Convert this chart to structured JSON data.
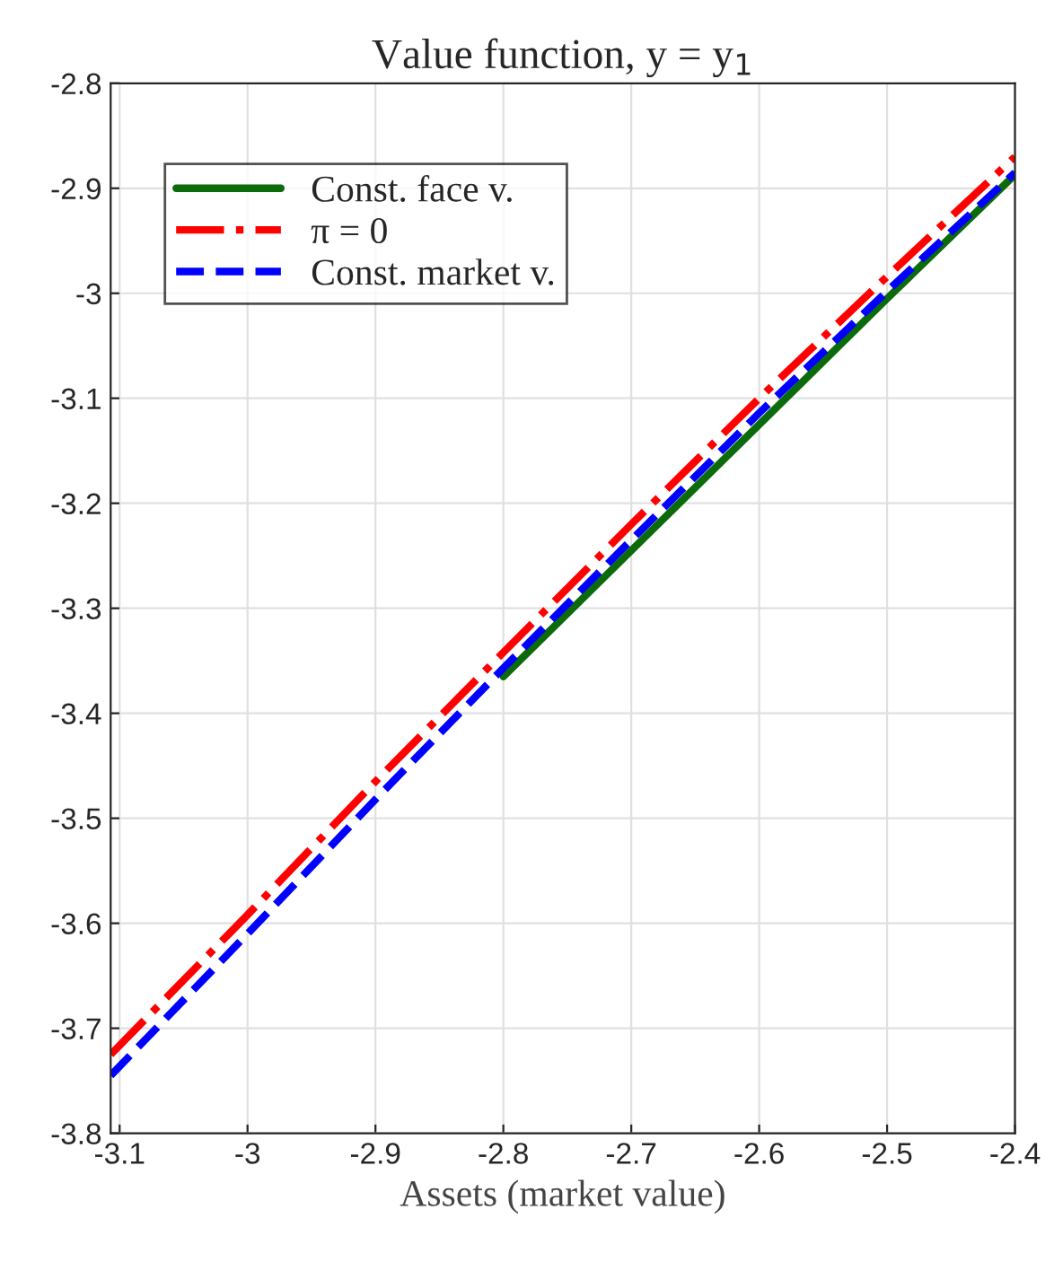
{
  "chart_data": {
    "type": "line",
    "title": "Value function, y = y$_{1}$",
    "xlabel": "Assets (market value)",
    "xlim": [
      -3.107,
      -2.4
    ],
    "xticks": [
      -3.1,
      -3,
      -2.9,
      -2.8,
      -2.7,
      -2.6,
      -2.5,
      -2.4
    ],
    "ylim": [
      -3.8,
      -2.8
    ],
    "yticks": [
      -3.8,
      -3.7,
      -3.6,
      -3.5,
      -3.4,
      -3.3,
      -3.2,
      -3.1,
      -3,
      -2.9,
      -2.8
    ],
    "grid": true,
    "legend": "top left",
    "marker": "none",
    "series": [
      {
        "name": "Const. face v.",
        "color": "#0b6b0b",
        "line_style": "solid",
        "x": [
          -2.8,
          -2.7,
          -2.6,
          -2.5,
          -2.4
        ],
        "values": [
          -3.365,
          -3.245,
          -3.125,
          -3.005,
          -2.887
        ]
      },
      {
        "name": "π = 0",
        "color": "#ff0000",
        "line_style": "dashdot",
        "x": [
          -3.107,
          -3.0,
          -2.9,
          -2.8,
          -2.7,
          -2.6,
          -2.5,
          -2.4
        ],
        "values": [
          -3.725,
          -3.592,
          -3.465,
          -3.342,
          -3.22,
          -3.1,
          -2.984,
          -2.87
        ]
      },
      {
        "name": "Const. market v.",
        "color": "#0000ff",
        "line_style": "dashed",
        "x": [
          -3.107,
          -3.0,
          -2.9,
          -2.8,
          -2.7,
          -2.6,
          -2.5,
          -2.4
        ],
        "values": [
          -3.745,
          -3.61,
          -3.482,
          -3.357,
          -3.235,
          -3.114,
          -2.998,
          -2.885
        ]
      }
    ]
  }
}
